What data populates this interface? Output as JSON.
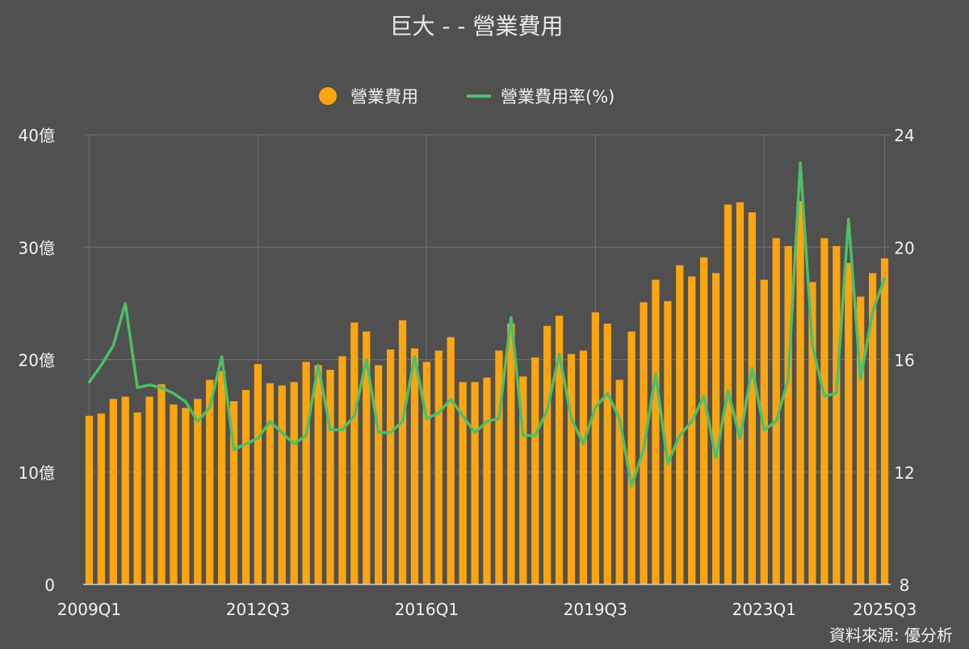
{
  "chart_data": {
    "type": "bar",
    "title": "巨大 - - 營業費用",
    "source": "資料來源: 優分析",
    "legend": {
      "position": "top",
      "items": [
        {
          "label": "營業費用",
          "marker": "circle"
        },
        {
          "label": "營業費用率(%)",
          "marker": "line"
        }
      ]
    },
    "colors": {
      "bar": "#FDA50F",
      "line": "#4CBF67",
      "background": "#505050",
      "grid": "#6E6E6E"
    },
    "grid": true,
    "x_tick_labels": [
      "2009Q1",
      "2012Q3",
      "2016Q1",
      "2019Q3",
      "2023Q1",
      "2025Q3"
    ],
    "y_left": {
      "range": [
        0,
        40
      ],
      "ticks": [
        0,
        10,
        20,
        30,
        40
      ],
      "tick_labels": [
        "0",
        "10億",
        "20億",
        "30億",
        "40億"
      ]
    },
    "y_right": {
      "range": [
        8,
        24
      ],
      "ticks": [
        8,
        12,
        16,
        20,
        24
      ],
      "tick_labels": [
        "8",
        "12",
        "16",
        "20",
        "24"
      ]
    },
    "categories": [
      "2009Q1",
      "2009Q2",
      "2009Q3",
      "2009Q4",
      "2010Q1",
      "2010Q2",
      "2010Q3",
      "2010Q4",
      "2011Q1",
      "2011Q2",
      "2011Q3",
      "2011Q4",
      "2012Q1",
      "2012Q2",
      "2012Q3",
      "2012Q4",
      "2013Q1",
      "2013Q2",
      "2013Q3",
      "2013Q4",
      "2014Q1",
      "2014Q2",
      "2014Q3",
      "2014Q4",
      "2015Q1",
      "2015Q2",
      "2015Q3",
      "2015Q4",
      "2016Q1",
      "2016Q2",
      "2016Q3",
      "2016Q4",
      "2017Q1",
      "2017Q2",
      "2017Q3",
      "2017Q4",
      "2018Q1",
      "2018Q2",
      "2018Q3",
      "2018Q4",
      "2019Q1",
      "2019Q2",
      "2019Q3",
      "2019Q4",
      "2020Q1",
      "2020Q2",
      "2020Q3",
      "2020Q4",
      "2021Q1",
      "2021Q2",
      "2021Q3",
      "2021Q4",
      "2022Q1",
      "2022Q2",
      "2022Q3",
      "2022Q4",
      "2023Q1",
      "2023Q2",
      "2023Q3",
      "2023Q4",
      "2024Q1",
      "2024Q2",
      "2024Q3",
      "2024Q4",
      "2025Q1",
      "2025Q2",
      "2025Q3"
    ],
    "series": [
      {
        "name": "營業費用",
        "type": "bar",
        "axis": "left",
        "values": [
          15.0,
          15.2,
          16.5,
          16.7,
          15.3,
          16.7,
          17.8,
          16.0,
          15.7,
          16.5,
          18.2,
          19.0,
          16.3,
          17.3,
          19.6,
          17.9,
          17.7,
          18.0,
          19.8,
          19.5,
          19.1,
          20.3,
          23.3,
          22.5,
          19.5,
          20.9,
          23.5,
          21.0,
          19.8,
          20.8,
          22.0,
          18.0,
          18.0,
          18.4,
          20.8,
          23.2,
          18.5,
          20.2,
          23.0,
          23.9,
          20.5,
          20.8,
          24.2,
          23.2,
          18.2,
          22.5,
          25.1,
          27.1,
          25.2,
          28.4,
          27.4,
          29.1,
          27.7,
          33.8,
          34.0,
          33.1,
          27.1,
          30.8,
          30.1,
          34.1,
          26.9,
          30.8,
          30.1,
          28.6,
          25.6,
          27.7,
          29.0
        ]
      },
      {
        "name": "營業費用率(%)",
        "type": "line",
        "axis": "right",
        "values": [
          15.2,
          15.8,
          16.5,
          18.0,
          15.0,
          15.1,
          15.0,
          14.8,
          14.5,
          13.8,
          14.3,
          16.1,
          12.8,
          13.0,
          13.2,
          13.8,
          13.4,
          13.0,
          13.3,
          15.8,
          13.5,
          13.5,
          14.0,
          16.0,
          13.4,
          13.4,
          13.8,
          16.1,
          13.9,
          14.1,
          14.6,
          14.0,
          13.4,
          13.8,
          13.9,
          17.5,
          13.3,
          13.3,
          14.2,
          16.2,
          13.9,
          13.0,
          14.3,
          14.8,
          13.9,
          11.5,
          12.8,
          15.5,
          12.3,
          13.3,
          13.8,
          14.7,
          12.5,
          14.9,
          13.2,
          15.7,
          13.5,
          13.8,
          15.3,
          23.0,
          16.5,
          14.7,
          14.8,
          21.0,
          15.3,
          17.7,
          18.9
        ]
      }
    ]
  }
}
